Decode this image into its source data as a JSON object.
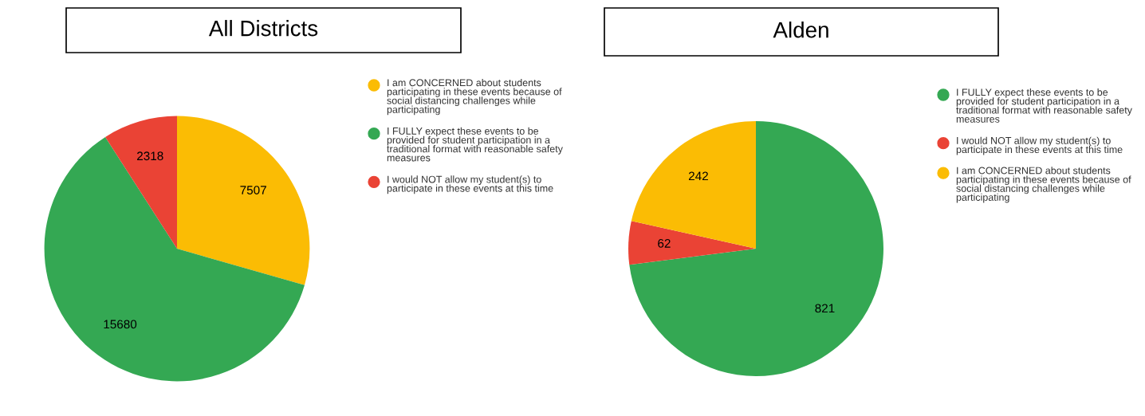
{
  "chart_data": [
    {
      "type": "pie",
      "title": "All Districts",
      "categories": [
        "I am CONCERNED about students participating in these events because of social distancing challenges while participating",
        "I FULLY expect these events to be provided for student participation in a traditional format with reasonable safety measures",
        "I would NOT allow my student(s) to participate in these events at this time"
      ],
      "values": [
        7507,
        15680,
        2318
      ],
      "colors": [
        "#fbbc04",
        "#34a853",
        "#ea4335"
      ],
      "data_labels": true,
      "legend": "right"
    },
    {
      "type": "pie",
      "title": "Alden",
      "categories": [
        "I FULLY expect these events to be provided for student participation in a traditional format with reasonable safety measures",
        "I would NOT allow my student(s) to participate in these events at this time",
        "I am CONCERNED about students participating in these events because of social distancing challenges while participating"
      ],
      "values": [
        821,
        62,
        242
      ],
      "colors": [
        "#34a853",
        "#ea4335",
        "#fbbc04"
      ],
      "data_labels": true,
      "legend": "right"
    }
  ]
}
